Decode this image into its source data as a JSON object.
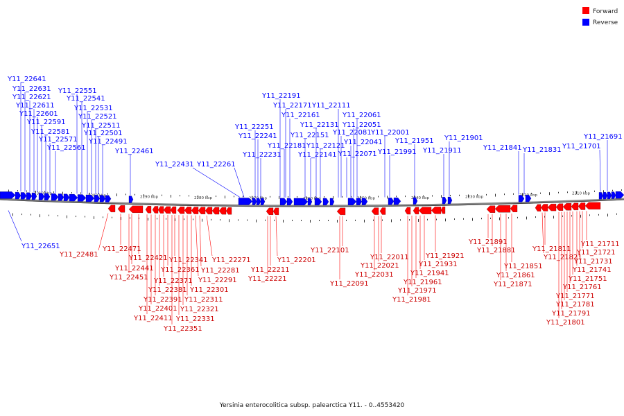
{
  "legend": {
    "forward": {
      "label": "Forward",
      "color": "#ff0000"
    },
    "reverse": {
      "label": "Reverse",
      "color": "#0000ff"
    }
  },
  "caption": "Yersinia enterocolitica subsp. palearctica Y11. - 0..4553420",
  "scale_labels": [
    "2310 kbp",
    "2300 kbp",
    "2290 kbp",
    "2280 kbp",
    "2270 kbp",
    "2260 kbp",
    "2250 kbp",
    "2240 kbp",
    "2230 kbp",
    "2220 kbp",
    "2210 kbp"
  ],
  "reverse_genes": [
    "Y11_22641",
    "Y11_22631",
    "Y11_22621",
    "Y11_22611",
    "Y11_22601",
    "Y11_22591",
    "Y11_22581",
    "Y11_22571",
    "Y11_22561",
    "Y11_22551",
    "Y11_22541",
    "Y11_22531",
    "Y11_22521",
    "Y11_22511",
    "Y11_22501",
    "Y11_22491",
    "Y11_22461",
    "Y11_22431",
    "Y11_22261",
    "Y11_22251",
    "Y11_22241",
    "Y11_22231",
    "Y11_22191",
    "Y11_22181",
    "Y11_22171",
    "Y11_22161",
    "Y11_22151",
    "Y11_22141",
    "Y11_22131",
    "Y11_22121",
    "Y11_22111",
    "Y11_22081",
    "Y11_22071",
    "Y11_22061",
    "Y11_22051",
    "Y11_22041",
    "Y11_22001",
    "Y11_21991",
    "Y11_21951",
    "Y11_21911",
    "Y11_21901",
    "Y11_21841",
    "Y11_21831",
    "Y11_21701",
    "Y11_21691",
    "Y11_22651"
  ],
  "forward_genes": [
    "Y11_22481",
    "Y11_22471",
    "Y11_22451",
    "Y11_22441",
    "Y11_22421",
    "Y11_22411",
    "Y11_22401",
    "Y11_22391",
    "Y11_22381",
    "Y11_22371",
    "Y11_22361",
    "Y11_22351",
    "Y11_22341",
    "Y11_22331",
    "Y11_22321",
    "Y11_22311",
    "Y11_22301",
    "Y11_22291",
    "Y11_22281",
    "Y11_22271",
    "Y11_22221",
    "Y11_22211",
    "Y11_22201",
    "Y11_22101",
    "Y11_22091",
    "Y11_22031",
    "Y11_22021",
    "Y11_22011",
    "Y11_21981",
    "Y11_21971",
    "Y11_21961",
    "Y11_21941",
    "Y11_21931",
    "Y11_21921",
    "Y11_21891",
    "Y11_21881",
    "Y11_21871",
    "Y11_21861",
    "Y11_21851",
    "Y11_21821",
    "Y11_21811",
    "Y11_21801",
    "Y11_21791",
    "Y11_21781",
    "Y11_21771",
    "Y11_21761",
    "Y11_21751",
    "Y11_21741",
    "Y11_21731",
    "Y11_21721",
    "Y11_21711"
  ]
}
